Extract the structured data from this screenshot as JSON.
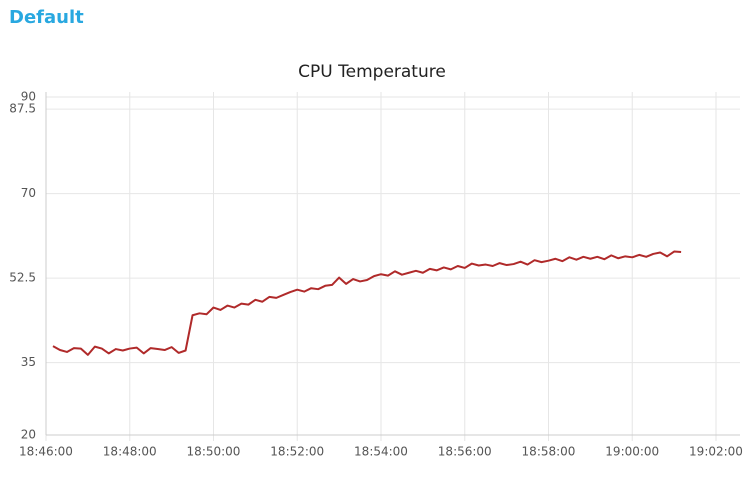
{
  "header": {
    "title": "Default"
  },
  "chart_data": {
    "type": "line",
    "title": "CPU Temperature",
    "x": [
      "18:46:10",
      "18:46:20",
      "18:46:30",
      "18:46:40",
      "18:46:50",
      "18:47:00",
      "18:47:10",
      "18:47:20",
      "18:47:30",
      "18:47:40",
      "18:47:50",
      "18:48:00",
      "18:48:10",
      "18:48:20",
      "18:48:30",
      "18:48:40",
      "18:48:50",
      "18:49:00",
      "18:49:10",
      "18:49:20",
      "18:49:30",
      "18:49:40",
      "18:49:50",
      "18:50:00",
      "18:50:10",
      "18:50:20",
      "18:50:30",
      "18:50:40",
      "18:50:50",
      "18:51:00",
      "18:51:10",
      "18:51:20",
      "18:51:30",
      "18:51:40",
      "18:51:50",
      "18:52:00",
      "18:52:10",
      "18:52:20",
      "18:52:30",
      "18:52:40",
      "18:52:50",
      "18:53:00",
      "18:53:10",
      "18:53:20",
      "18:53:30",
      "18:53:40",
      "18:53:50",
      "18:54:00",
      "18:54:10",
      "18:54:20",
      "18:54:30",
      "18:54:40",
      "18:54:50",
      "18:55:00",
      "18:55:10",
      "18:55:20",
      "18:55:30",
      "18:55:40",
      "18:55:50",
      "18:56:00",
      "18:56:10",
      "18:56:20",
      "18:56:30",
      "18:56:40",
      "18:56:50",
      "18:57:00",
      "18:57:10",
      "18:57:20",
      "18:57:30",
      "18:57:40",
      "18:57:50",
      "18:58:00",
      "18:58:10",
      "18:58:20",
      "18:58:30",
      "18:58:40",
      "18:58:50",
      "18:59:00",
      "18:59:10",
      "18:59:20",
      "18:59:30",
      "18:59:40",
      "18:59:50",
      "19:00:00",
      "19:00:10",
      "19:00:20",
      "19:00:30",
      "19:00:40",
      "19:00:50",
      "19:01:00",
      "19:01:10"
    ],
    "series": [
      {
        "color": "#b02a2a",
        "values": [
          38.4,
          37.6,
          37.2,
          38.0,
          37.9,
          36.6,
          38.3,
          37.9,
          36.9,
          37.8,
          37.5,
          37.9,
          38.1,
          36.9,
          38.0,
          37.8,
          37.6,
          38.2,
          37.0,
          37.5,
          44.8,
          45.2,
          45.0,
          46.4,
          45.9,
          46.8,
          46.4,
          47.2,
          47.0,
          48.0,
          47.6,
          48.6,
          48.4,
          49.0,
          49.6,
          50.1,
          49.7,
          50.4,
          50.2,
          50.9,
          51.1,
          52.6,
          51.3,
          52.3,
          51.8,
          52.1,
          52.9,
          53.3,
          53.0,
          53.9,
          53.2,
          53.6,
          54.0,
          53.6,
          54.4,
          54.1,
          54.7,
          54.3,
          55.0,
          54.6,
          55.5,
          55.1,
          55.3,
          55.0,
          55.6,
          55.2,
          55.4,
          55.9,
          55.3,
          56.2,
          55.8,
          56.1,
          56.5,
          56.0,
          56.8,
          56.3,
          56.9,
          56.5,
          56.9,
          56.4,
          57.2,
          56.6,
          57.0,
          56.8,
          57.3,
          56.9,
          57.5,
          57.8,
          57.0,
          58.0,
          57.9
        ]
      }
    ],
    "xlim": [
      "18:46:00",
      "19:02:00"
    ],
    "xticks": [
      "18:46:00",
      "18:48:00",
      "18:50:00",
      "18:52:00",
      "18:54:00",
      "18:56:00",
      "18:58:00",
      "19:00:00",
      "19:02:00"
    ],
    "ylim": [
      20,
      90
    ],
    "yticks": [
      20,
      35,
      52.5,
      70,
      87.5,
      90
    ],
    "grid": true
  }
}
